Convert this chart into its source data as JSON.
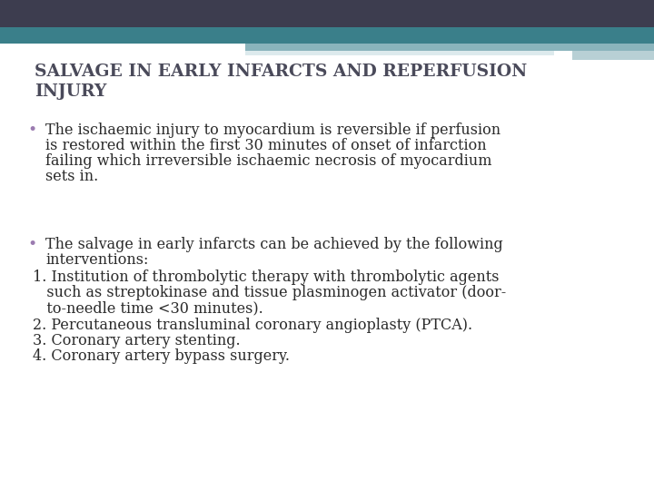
{
  "title_line1": "SALVAGE IN EARLY INFARCTS AND REPERFUSION",
  "title_line2": "INJURY",
  "title_color": "#4a4a5a",
  "title_fontsize": 13.5,
  "body_fontsize": 11.5,
  "bullet_color": "#9b7bb0",
  "text_color": "#2a2a2a",
  "bg_color": "#ffffff",
  "header_dark": "#3d3d4f",
  "header_teal": "#3a7f8a",
  "header_light1": "#8ab4bc",
  "header_light2": "#b8d0d5",
  "header_white": "#ddeaed",
  "bullet1_line1": "The ischaemic injury to myocardium is reversible if perfusion",
  "bullet1_line2": "is restored within the first 30 minutes of onset of infarction",
  "bullet1_line3": "failing which irreversible ischaemic necrosis of myocardium",
  "bullet1_line4": "sets in.",
  "bullet2_line1": "The salvage in early infarcts can be achieved by the following",
  "bullet2_line2": "interventions:",
  "item1_line1": "1. Institution of thrombolytic therapy with thrombolytic agents",
  "item1_line2": "   such as streptokinase and tissue plasminogen activator (door-",
  "item1_line3": "   to-needle time <30 minutes).",
  "item2": "2. Percutaneous transluminal coronary angioplasty (PTCA).",
  "item3": "3. Coronary artery stenting.",
  "item4": "4. Coronary artery bypass surgery."
}
